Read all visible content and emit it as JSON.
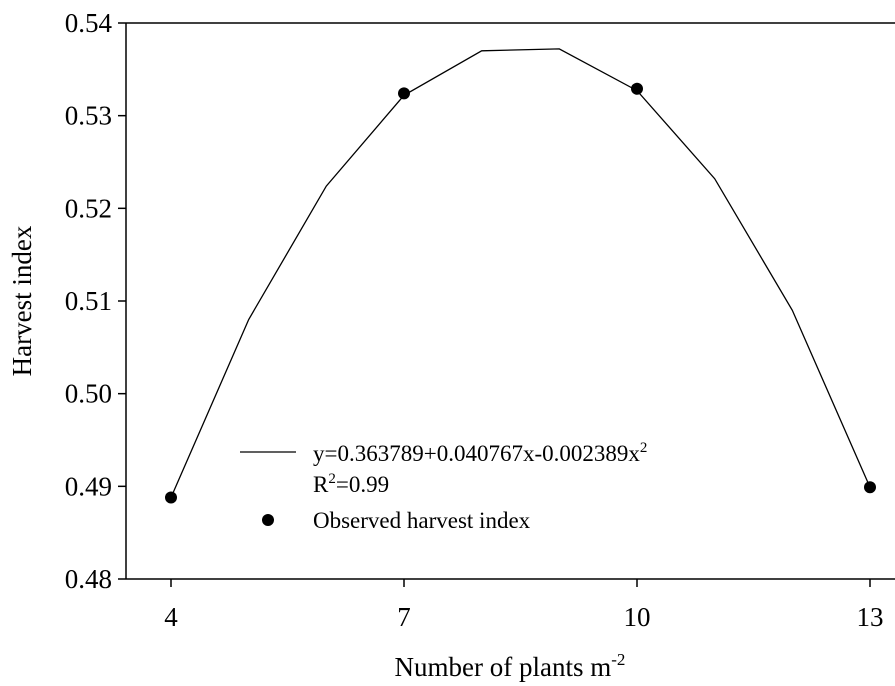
{
  "chart_data": {
    "type": "scatter",
    "xlabel": "Number of plants m",
    "xlabel_superscript": "-2",
    "ylabel": "Harvest index",
    "xlim": [
      3.9,
      13.0
    ],
    "ylim": [
      0.48,
      0.54
    ],
    "x_ticks": [
      {
        "value": 4,
        "label": "4"
      },
      {
        "value": 7,
        "label": "7"
      },
      {
        "value": 10,
        "label": "10"
      },
      {
        "value": 13,
        "label": "13"
      }
    ],
    "y_ticks": [
      {
        "value": 0.48,
        "label": "0.48"
      },
      {
        "value": 0.49,
        "label": "0.49"
      },
      {
        "value": 0.5,
        "label": "0.50"
      },
      {
        "value": 0.51,
        "label": "0.51"
      },
      {
        "value": 0.52,
        "label": "0.52"
      },
      {
        "value": 0.53,
        "label": "0.53"
      },
      {
        "value": 0.54,
        "label": "0.54"
      }
    ],
    "grid": false,
    "legend_position": "lower-center",
    "fit": {
      "equation_main": "y=0.363789+0.040767x-0.002389x",
      "equation_superscript": "2",
      "r2_base": "R",
      "r2_superscript": "2",
      "r2_value": "=0.99",
      "x": [
        4,
        5,
        6,
        7,
        8,
        9,
        10,
        11,
        12,
        13
      ],
      "y": [
        0.4888,
        0.508,
        0.5224,
        0.5322,
        0.537,
        0.5372,
        0.5327,
        0.5232,
        0.509,
        0.4899
      ]
    },
    "series": [
      {
        "name": "Observed harvest index",
        "x": [
          4,
          7,
          10,
          13
        ],
        "y": [
          0.4888,
          0.5324,
          0.5329,
          0.4899
        ]
      }
    ]
  }
}
